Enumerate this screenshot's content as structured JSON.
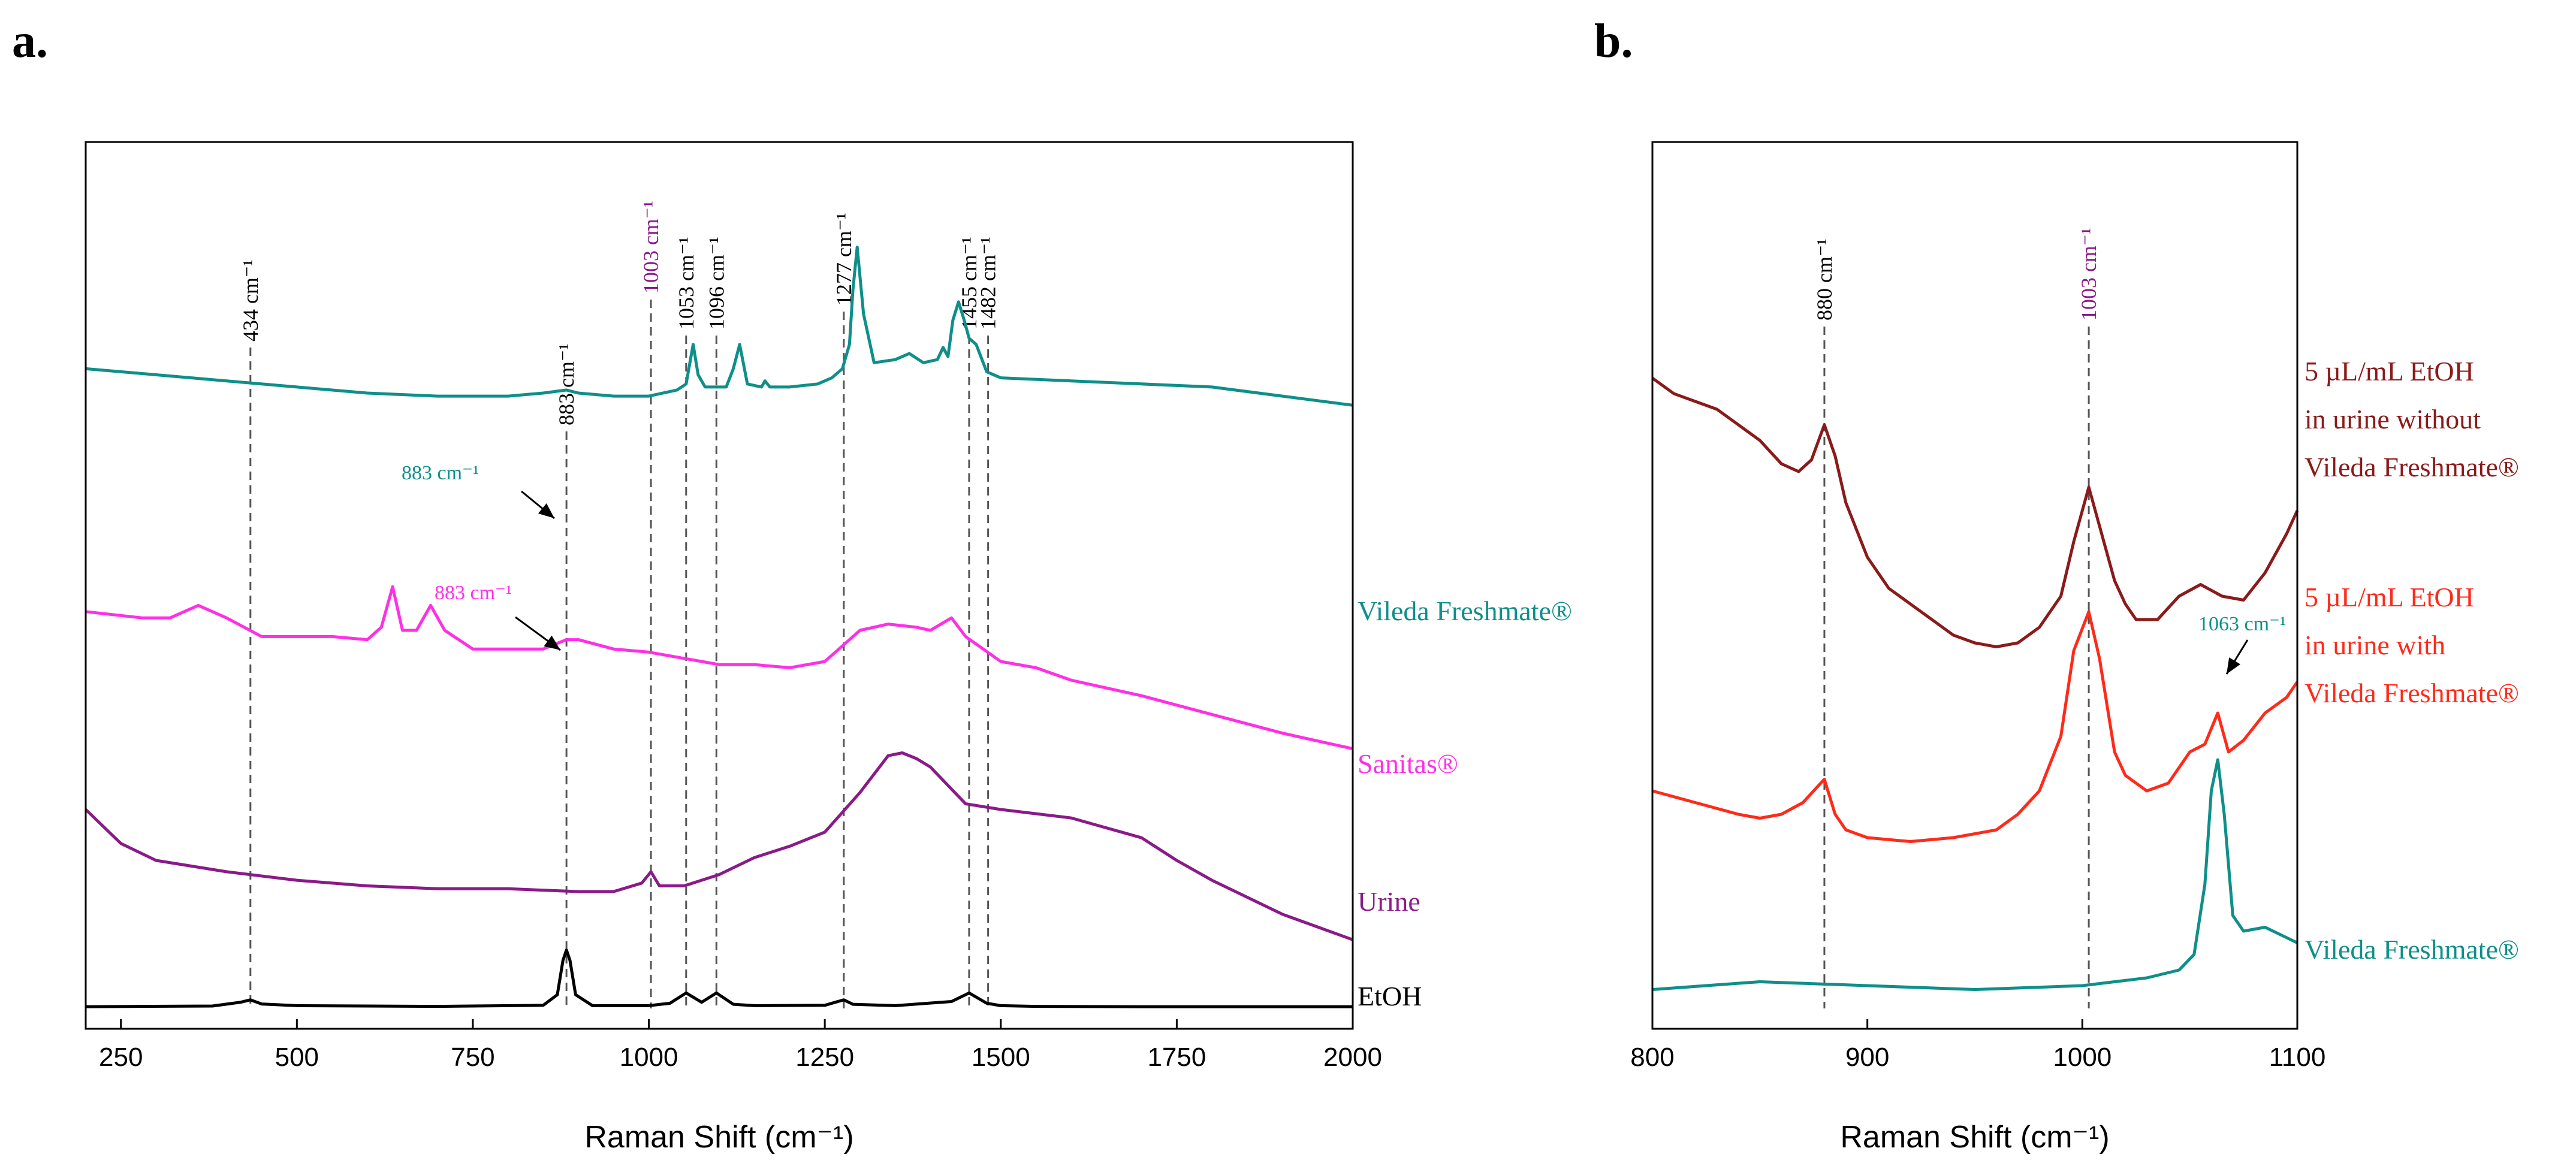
{
  "chart_data": [
    {
      "panel": "a.",
      "type": "line",
      "xlabel": "Raman Shift (cm⁻¹)",
      "ylabel": "",
      "xlim": [
        200,
        2000
      ],
      "ylim": [
        0,
        100
      ],
      "xticks": [
        250,
        500,
        750,
        1000,
        1250,
        1500,
        1750,
        2000
      ],
      "dashed_lines": [
        {
          "x": 434,
          "label": "434 cm⁻¹",
          "color": "#000000"
        },
        {
          "x": 883,
          "label": "883 cm⁻¹",
          "color": "#000000"
        },
        {
          "x": 1003,
          "label": "1003 cm⁻¹",
          "color": "#8B1A89"
        },
        {
          "x": 1053,
          "label": "1053 cm⁻¹",
          "color": "#000000"
        },
        {
          "x": 1096,
          "label": "1096 cm⁻¹",
          "color": "#000000"
        },
        {
          "x": 1277,
          "label": "1277 cm⁻¹",
          "color": "#000000"
        },
        {
          "x": 1455,
          "label": "1455 cm⁻¹",
          "color": "#000000"
        },
        {
          "x": 1482,
          "label": "1482 cm⁻¹",
          "color": "#000000"
        }
      ],
      "annotations": [
        {
          "text": "883 cm⁻¹",
          "color": "#0E8F8A",
          "x": 883,
          "y": 58.5
        },
        {
          "text": "883 cm⁻¹",
          "color": "#FF2FE6",
          "x": 883,
          "y": 42.5
        }
      ],
      "series": [
        {
          "name": "Vileda Freshmate",
          "label": "Vileda Freshmate®",
          "color": "#0E8F8A",
          "x": [
            200,
            300,
            400,
            500,
            600,
            700,
            750,
            800,
            850,
            883,
            900,
            950,
            1000,
            1040,
            1053,
            1063,
            1070,
            1080,
            1110,
            1120,
            1129,
            1140,
            1160,
            1165,
            1172,
            1200,
            1240,
            1260,
            1275,
            1285,
            1290,
            1296,
            1305,
            1320,
            1350,
            1370,
            1390,
            1410,
            1418,
            1425,
            1432,
            1440,
            1448,
            1455,
            1465,
            1480,
            1500,
            1600,
            1700,
            1800,
            1900,
            2000
          ],
          "y": [
            64,
            63,
            62,
            61,
            60,
            59.5,
            59.5,
            59.5,
            60,
            60.5,
            60,
            59.5,
            59.5,
            60.5,
            61.5,
            68,
            63,
            61,
            61,
            64,
            68,
            61.5,
            61,
            62,
            61,
            61,
            61.5,
            62.5,
            64,
            68,
            77,
            84,
            73,
            65,
            65.5,
            66.5,
            65,
            65.5,
            67.5,
            66,
            72,
            75,
            72,
            69,
            68,
            63.5,
            62.5,
            62,
            61.5,
            61,
            59.5,
            58
          ]
        },
        {
          "name": "Sanitas",
          "label": "Sanitas®",
          "color": "#FF2FE6",
          "x": [
            200,
            280,
            320,
            360,
            400,
            450,
            500,
            550,
            600,
            620,
            636,
            650,
            670,
            690,
            710,
            750,
            800,
            850,
            883,
            900,
            950,
            1000,
            1050,
            1100,
            1150,
            1200,
            1250,
            1300,
            1340,
            1380,
            1400,
            1430,
            1450,
            1500,
            1550,
            1600,
            1700,
            1800,
            1900,
            2000
          ],
          "y": [
            48,
            47,
            47,
            49,
            47,
            44,
            44,
            44,
            43.5,
            45.5,
            52,
            45,
            45,
            49,
            45,
            42,
            42,
            42,
            43.5,
            43.5,
            42,
            41.5,
            40.5,
            39.5,
            39.5,
            39,
            40,
            45,
            46,
            45.5,
            45,
            47,
            44,
            40,
            39,
            37,
            34.5,
            31.5,
            28.5,
            26
          ]
        },
        {
          "name": "Urine",
          "label": "Urine",
          "color": "#8B1A89",
          "x": [
            200,
            250,
            300,
            400,
            500,
            600,
            700,
            800,
            900,
            950,
            990,
            1003,
            1015,
            1050,
            1100,
            1150,
            1200,
            1250,
            1300,
            1340,
            1360,
            1380,
            1400,
            1450,
            1500,
            1600,
            1700,
            1750,
            1800,
            1900,
            2000
          ],
          "y": [
            29,
            23,
            20,
            18,
            16.5,
            15.5,
            15,
            15,
            14.5,
            14.5,
            16,
            18,
            15.5,
            15.5,
            17.5,
            20.5,
            22.5,
            25,
            32,
            38.5,
            39,
            38,
            36.5,
            30,
            29,
            27.5,
            24,
            20,
            16.5,
            10.5,
            6
          ]
        },
        {
          "name": "EtOH",
          "label": "EtOH",
          "color": "#000000",
          "x": [
            200,
            380,
            420,
            434,
            450,
            500,
            700,
            850,
            870,
            878,
            883,
            888,
            896,
            920,
            1000,
            1030,
            1053,
            1075,
            1096,
            1120,
            1150,
            1250,
            1265,
            1277,
            1290,
            1350,
            1430,
            1455,
            1480,
            1500,
            1550,
            1700,
            1850,
            2000
          ],
          "y": [
            0.5,
            0.7,
            1.8,
            2.5,
            1.3,
            0.8,
            0.6,
            0.9,
            4,
            14,
            17,
            14,
            4,
            0.8,
            0.8,
            1.5,
            4.5,
            1.8,
            4.5,
            1.2,
            0.8,
            0.9,
            1.8,
            2.5,
            1.2,
            0.8,
            2,
            4.5,
            1.5,
            0.8,
            0.6,
            0.5,
            0.5,
            0.5
          ]
        }
      ]
    },
    {
      "panel": "b.",
      "type": "line",
      "xlabel": "Raman Shift (cm⁻¹)",
      "ylabel": "",
      "xlim": [
        800,
        1100
      ],
      "ylim": [
        0,
        100
      ],
      "xticks": [
        800,
        900,
        1000,
        1100
      ],
      "dashed_lines": [
        {
          "x": 880,
          "label": "880 cm⁻¹",
          "color": "#000000"
        },
        {
          "x": 1003,
          "label": "1003 cm⁻¹",
          "color": "#8B1A89"
        }
      ],
      "annotations": [
        {
          "text": "1063 cm⁻¹",
          "color": "#0E8F8A",
          "x": 1063,
          "y": 40
        }
      ],
      "series": [
        {
          "name": "5 uL/mL EtOH in urine without Vileda Freshmate",
          "label_lines": [
            "5 µL/mL EtOH",
            "in urine without",
            "Vileda Freshmate®"
          ],
          "color": "#8B1A1A",
          "x": [
            800,
            810,
            820,
            830,
            840,
            850,
            860,
            868,
            874,
            880,
            885,
            890,
            900,
            910,
            920,
            930,
            940,
            950,
            960,
            970,
            980,
            990,
            996,
            1003,
            1008,
            1015,
            1020,
            1025,
            1035,
            1045,
            1055,
            1065,
            1075,
            1085,
            1095,
            1100
          ],
          "y": [
            83,
            81,
            80,
            79,
            77,
            75,
            72,
            71,
            72.5,
            77,
            73,
            67,
            60,
            56,
            54,
            52,
            50,
            49,
            48.5,
            49,
            51,
            55,
            62,
            69,
            64,
            57,
            54,
            52,
            52,
            55,
            56.5,
            55,
            54.5,
            58,
            63,
            66
          ]
        },
        {
          "name": "5 uL/mL EtOH in urine with Vileda Freshmate",
          "label_lines": [
            "5 µL/mL EtOH",
            "in urine with",
            "Vileda Freshmate®"
          ],
          "color": "#FF2A1A",
          "x": [
            800,
            820,
            840,
            850,
            860,
            870,
            875,
            880,
            885,
            890,
            900,
            920,
            940,
            960,
            970,
            980,
            990,
            996,
            1003,
            1008,
            1015,
            1020,
            1030,
            1040,
            1050,
            1057,
            1063,
            1068,
            1075,
            1085,
            1095,
            1100
          ],
          "y": [
            30,
            28.5,
            27,
            26.5,
            27,
            28.5,
            30,
            31.5,
            27,
            25,
            24,
            23.5,
            24,
            25,
            27,
            30,
            37,
            48,
            53,
            47,
            35,
            32,
            30,
            31,
            35,
            36,
            40,
            35,
            36.5,
            40,
            42,
            44
          ]
        },
        {
          "name": "Vileda Freshmate",
          "label": "Vileda Freshmate®",
          "color": "#0E8F8A",
          "x": [
            800,
            850,
            900,
            950,
            1000,
            1030,
            1045,
            1052,
            1057,
            1060,
            1063,
            1066,
            1070,
            1075,
            1085,
            1100
          ],
          "y": [
            4.5,
            5.5,
            5,
            4.5,
            5,
            6,
            7,
            9,
            18,
            30,
            34,
            27,
            14,
            12,
            12.5,
            10.5
          ]
        }
      ]
    }
  ]
}
